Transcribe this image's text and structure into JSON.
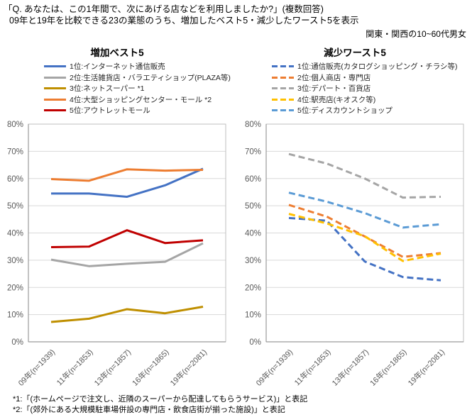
{
  "header": {
    "question": "「Q. あなたは、この1年間で、次にあげる店などを利用しましたか?」(複数回答)",
    "subtitle": "09年と19年を比較できる23の業態のうち、増加したベスト5・減少したワースト5を表示",
    "audience": "関東・関西の10~60代男女"
  },
  "footnotes": [
    "*1:「(ホームページで注文し、近隣のスーパーから配達してもらうサービス)」と表記",
    "*2:「(郊外にある大規模駐車場併設の専門店・飲食店街が揃った施設)」と表記"
  ],
  "style_colors": {
    "gridline": "#D9D9D9",
    "plot_border": "#BFBFBF",
    "axis_label": "#595959",
    "text": "#000000"
  },
  "chart_data": [
    {
      "type": "line",
      "title": "増加ベスト5",
      "line_style": "solid",
      "grid": true,
      "legend_position": "top-left",
      "categories": [
        "09年(n=1939)",
        "11年(n=1853)",
        "13年(n=1857)",
        "16年(n=1865)",
        "19年(n=2081)"
      ],
      "ylim": [
        0,
        80
      ],
      "ytick_step": 10,
      "ytick_suffix": "%",
      "series": [
        {
          "name": "1位:インターネット通信販売",
          "color": "#4472C4",
          "values": [
            54.5,
            54.5,
            53.3,
            57.5,
            63.6
          ]
        },
        {
          "name": "2位:生活雑貨店・バラエティショップ(PLAZA等)",
          "color": "#A5A5A5",
          "values": [
            30.2,
            27.8,
            28.7,
            29.4,
            36.2
          ]
        },
        {
          "name": "3位:ネットスーパー *1",
          "color": "#BF8F00",
          "values": [
            7.3,
            8.5,
            12.0,
            10.5,
            12.9
          ]
        },
        {
          "name": "4位:大型ショッピングセンター・モール *2",
          "color": "#ED7D31",
          "values": [
            59.8,
            59.2,
            63.4,
            62.9,
            63.2
          ]
        },
        {
          "name": "5位:アウトレットモール",
          "color": "#C00000",
          "values": [
            34.8,
            35.0,
            41.0,
            36.3,
            37.3
          ]
        }
      ]
    },
    {
      "type": "line",
      "title": "減少ワースト5",
      "line_style": "dashed",
      "grid": true,
      "legend_position": "top-left",
      "categories": [
        "09年(n=1939)",
        "11年(n=1853)",
        "13年(n=1857)",
        "16年(n=1865)",
        "19年(n=2081)"
      ],
      "ylim": [
        0,
        80
      ],
      "ytick_step": 10,
      "ytick_suffix": "%",
      "series": [
        {
          "name": "1位:通信販売(カタログショッピング・チラシ等)",
          "color": "#4472C4",
          "values": [
            45.5,
            44.5,
            29.5,
            23.8,
            22.6
          ]
        },
        {
          "name": "2位:個人商店・専門店",
          "color": "#ED7D31",
          "values": [
            50.3,
            46.0,
            38.7,
            31.2,
            32.6
          ]
        },
        {
          "name": "3位:デパート・百貨店",
          "color": "#A5A5A5",
          "values": [
            69.0,
            65.5,
            60.0,
            53.0,
            53.3
          ]
        },
        {
          "name": "4位:駅売店(キオスク等)",
          "color": "#FFC000",
          "values": [
            47.0,
            43.5,
            38.8,
            29.7,
            32.4
          ]
        },
        {
          "name": "5位:ディスカウントショップ",
          "color": "#5B9BD5",
          "values": [
            54.8,
            51.5,
            47.3,
            42.0,
            43.2
          ]
        }
      ]
    }
  ]
}
